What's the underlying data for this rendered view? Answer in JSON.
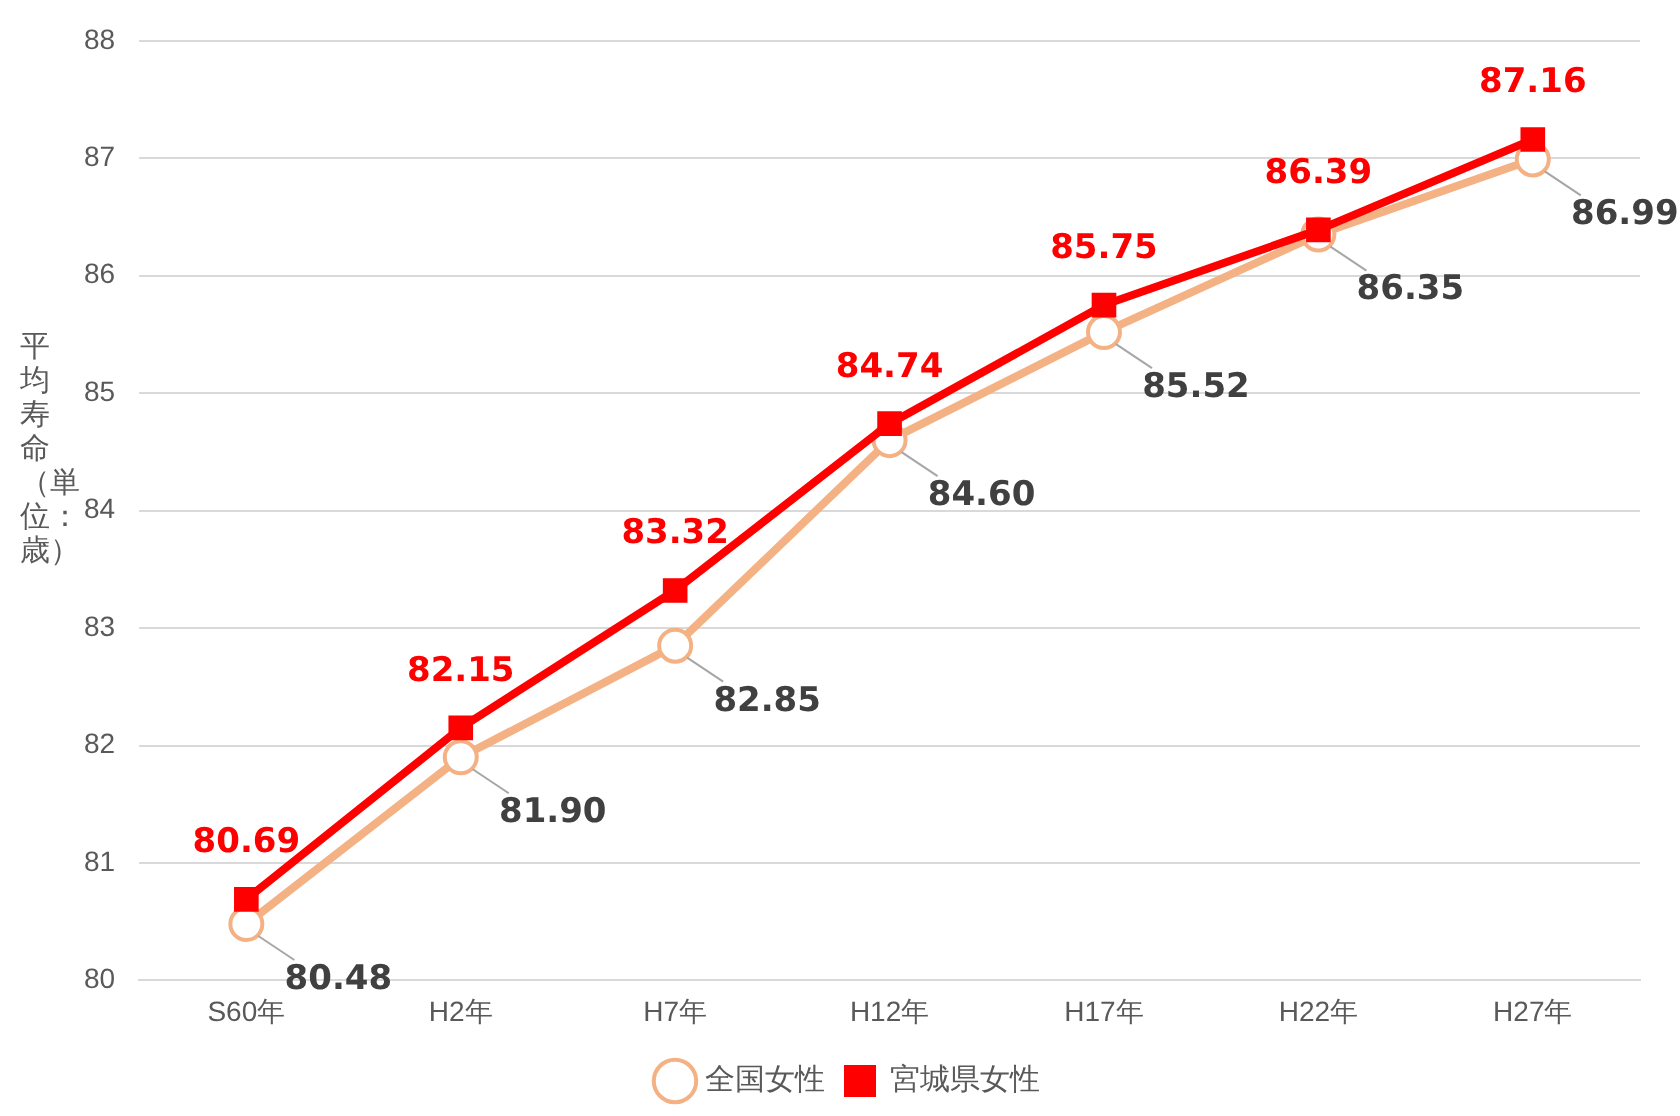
{
  "chart_data": {
    "type": "line",
    "ylabel": "平均寿命（単位：歳）",
    "categories": [
      "S60年",
      "H2年",
      "H7年",
      "H12年",
      "H17年",
      "H22年",
      "H27年"
    ],
    "series": [
      {
        "name": "全国女性",
        "color": "#f4b183",
        "marker": "circle",
        "values": [
          80.48,
          81.9,
          82.85,
          84.6,
          85.52,
          86.35,
          86.99
        ],
        "value_labels": [
          "80.48",
          "81.90",
          "82.85",
          "84.60",
          "85.52",
          "86.35",
          "86.99"
        ]
      },
      {
        "name": "宮城県女性",
        "color": "#ff0000",
        "marker": "square",
        "values": [
          80.69,
          82.15,
          83.32,
          84.74,
          85.75,
          86.39,
          87.16
        ],
        "value_labels": [
          "80.69",
          "82.15",
          "83.32",
          "84.74",
          "85.75",
          "86.39",
          "87.16"
        ]
      }
    ],
    "ylim": [
      80,
      88
    ],
    "yticks": [
      80,
      81,
      82,
      83,
      84,
      85,
      86,
      87,
      88
    ],
    "grid": "y",
    "legend": "bottom"
  }
}
